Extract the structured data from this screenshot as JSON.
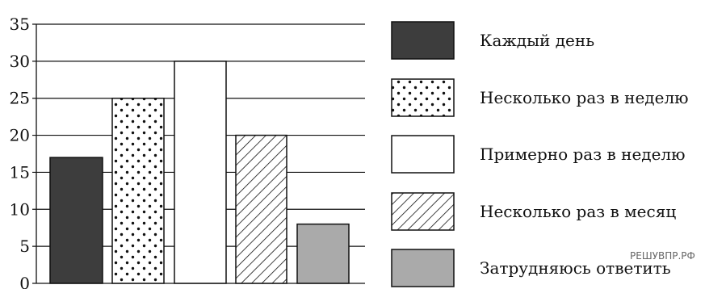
{
  "chart_data": {
    "type": "bar",
    "categories": [
      "Каждый день",
      "Несколько раз в неделю",
      "Примерно раз в неделю",
      "Несколько раз в месяц",
      "Затрудняюсь ответить"
    ],
    "values": [
      17,
      25,
      30,
      20,
      8
    ],
    "ylim": [
      0,
      35
    ],
    "yticks": [
      "0",
      "5",
      "10",
      "15",
      "20",
      "25",
      "30",
      "35"
    ],
    "grid": true,
    "legend": "right",
    "patterns": [
      "solid-dark",
      "dots",
      "white",
      "hatch",
      "solid-gray"
    ],
    "colors": {
      "dark": "#3d3d3d",
      "gray": "#aaaaaa",
      "white": "#ffffff",
      "line": "#111111"
    }
  },
  "watermark": "РЕШУВПР.РФ"
}
